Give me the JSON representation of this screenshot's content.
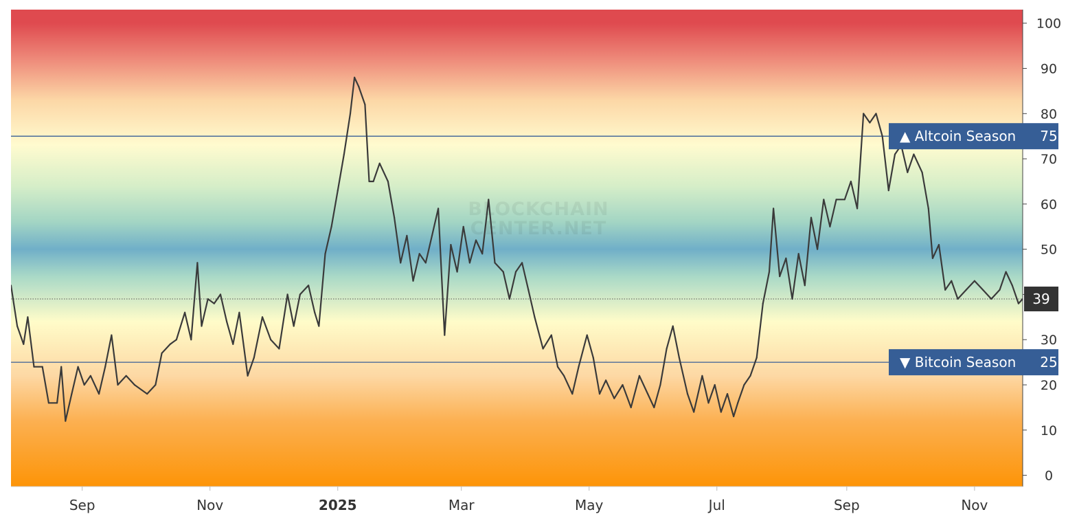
{
  "watermark": {
    "line1": "BLOCKCHAIN",
    "line2": "CENTER.NET"
  },
  "chart_data": {
    "type": "line",
    "title": "",
    "xlabel": "",
    "ylabel": "",
    "ylim": [
      -2.5,
      103
    ],
    "y_ticks": [
      0,
      10,
      20,
      30,
      40,
      50,
      60,
      70,
      80,
      90,
      100
    ],
    "x_range": [
      "2024-07-29",
      "2025-11-24"
    ],
    "x_ticks": [
      {
        "date": "2024-09-01",
        "label": "Sep",
        "bold": false
      },
      {
        "date": "2024-11-01",
        "label": "Nov",
        "bold": false
      },
      {
        "date": "2025-01-01",
        "label": "2025",
        "bold": true
      },
      {
        "date": "2025-03-01",
        "label": "Mar",
        "bold": false
      },
      {
        "date": "2025-05-01",
        "label": "May",
        "bold": false
      },
      {
        "date": "2025-07-01",
        "label": "Jul",
        "bold": false
      },
      {
        "date": "2025-09-01",
        "label": "Sep",
        "bold": false
      },
      {
        "date": "2025-11-01",
        "label": "Nov",
        "bold": false
      }
    ],
    "thresholds": [
      {
        "label": "▲ Altcoin Season",
        "value": 75,
        "value_label": "75",
        "color": "#365e96"
      },
      {
        "label": "▼ Bitcoin Season",
        "value": 25,
        "value_label": "25",
        "color": "#365e96"
      }
    ],
    "current": {
      "value": 39,
      "label": "39",
      "color": "#333333"
    },
    "background_gradient": [
      {
        "value": 100,
        "color": "#df4a4f"
      },
      {
        "value": 92,
        "color": "#ee8a7a"
      },
      {
        "value": 83,
        "color": "#fcd7a6"
      },
      {
        "value": 73,
        "color": "#fffbcf"
      },
      {
        "value": 64,
        "color": "#d6eec8"
      },
      {
        "value": 56,
        "color": "#a3d5c4"
      },
      {
        "value": 50,
        "color": "#70afc8"
      },
      {
        "value": 44,
        "color": "#a9d9c7"
      },
      {
        "value": 34,
        "color": "#fffcc9"
      },
      {
        "value": 22,
        "color": "#fdd8a4"
      },
      {
        "value": 12,
        "color": "#fcb051"
      },
      {
        "value": -2.5,
        "color": "#fd9407"
      }
    ],
    "line_color": "#3a3a3a",
    "series": [
      {
        "values": [
          [
            "2024-07-29",
            42
          ],
          [
            "2024-08-01",
            33
          ],
          [
            "2024-08-04",
            29
          ],
          [
            "2024-08-06",
            35
          ],
          [
            "2024-08-09",
            24
          ],
          [
            "2024-08-13",
            24
          ],
          [
            "2024-08-16",
            16
          ],
          [
            "2024-08-20",
            16
          ],
          [
            "2024-08-22",
            24
          ],
          [
            "2024-08-24",
            12
          ],
          [
            "2024-08-27",
            18
          ],
          [
            "2024-08-30",
            24
          ],
          [
            "2024-09-02",
            20
          ],
          [
            "2024-09-05",
            22
          ],
          [
            "2024-09-09",
            18
          ],
          [
            "2024-09-12",
            24
          ],
          [
            "2024-09-15",
            31
          ],
          [
            "2024-09-18",
            20
          ],
          [
            "2024-09-22",
            22
          ],
          [
            "2024-09-26",
            20
          ],
          [
            "2024-10-02",
            18
          ],
          [
            "2024-10-06",
            20
          ],
          [
            "2024-10-09",
            27
          ],
          [
            "2024-10-13",
            29
          ],
          [
            "2024-10-16",
            30
          ],
          [
            "2024-10-20",
            36
          ],
          [
            "2024-10-23",
            30
          ],
          [
            "2024-10-26",
            47
          ],
          [
            "2024-10-28",
            33
          ],
          [
            "2024-10-31",
            39
          ],
          [
            "2024-11-03",
            38
          ],
          [
            "2024-11-06",
            40
          ],
          [
            "2024-11-09",
            34
          ],
          [
            "2024-11-12",
            29
          ],
          [
            "2024-11-15",
            36
          ],
          [
            "2024-11-19",
            22
          ],
          [
            "2024-11-22",
            26
          ],
          [
            "2024-11-26",
            35
          ],
          [
            "2024-11-30",
            30
          ],
          [
            "2024-12-04",
            28
          ],
          [
            "2024-12-08",
            40
          ],
          [
            "2024-12-11",
            33
          ],
          [
            "2024-12-14",
            40
          ],
          [
            "2024-12-18",
            42
          ],
          [
            "2024-12-21",
            36
          ],
          [
            "2024-12-23",
            33
          ],
          [
            "2024-12-26",
            49
          ],
          [
            "2024-12-29",
            55
          ],
          [
            "2025-01-01",
            63
          ],
          [
            "2025-01-04",
            71
          ],
          [
            "2025-01-07",
            80
          ],
          [
            "2025-01-09",
            88
          ],
          [
            "2025-01-11",
            86
          ],
          [
            "2025-01-14",
            82
          ],
          [
            "2025-01-16",
            65
          ],
          [
            "2025-01-18",
            65
          ],
          [
            "2025-01-21",
            69
          ],
          [
            "2025-01-25",
            65
          ],
          [
            "2025-01-28",
            57
          ],
          [
            "2025-01-31",
            47
          ],
          [
            "2025-02-03",
            53
          ],
          [
            "2025-02-06",
            43
          ],
          [
            "2025-02-09",
            49
          ],
          [
            "2025-02-12",
            47
          ],
          [
            "2025-02-15",
            53
          ],
          [
            "2025-02-18",
            59
          ],
          [
            "2025-02-21",
            31
          ],
          [
            "2025-02-24",
            51
          ],
          [
            "2025-02-27",
            45
          ],
          [
            "2025-03-02",
            55
          ],
          [
            "2025-03-05",
            47
          ],
          [
            "2025-03-08",
            52
          ],
          [
            "2025-03-11",
            49
          ],
          [
            "2025-03-14",
            61
          ],
          [
            "2025-03-17",
            47
          ],
          [
            "2025-03-21",
            45
          ],
          [
            "2025-03-24",
            39
          ],
          [
            "2025-03-27",
            45
          ],
          [
            "2025-03-30",
            47
          ],
          [
            "2025-04-02",
            41
          ],
          [
            "2025-04-05",
            35
          ],
          [
            "2025-04-09",
            28
          ],
          [
            "2025-04-13",
            31
          ],
          [
            "2025-04-16",
            24
          ],
          [
            "2025-04-19",
            22
          ],
          [
            "2025-04-23",
            18
          ],
          [
            "2025-04-26",
            24
          ],
          [
            "2025-04-30",
            31
          ],
          [
            "2025-05-03",
            26
          ],
          [
            "2025-05-06",
            18
          ],
          [
            "2025-05-09",
            21
          ],
          [
            "2025-05-13",
            17
          ],
          [
            "2025-05-17",
            20
          ],
          [
            "2025-05-21",
            15
          ],
          [
            "2025-05-25",
            22
          ],
          [
            "2025-05-29",
            18
          ],
          [
            "2025-06-01",
            15
          ],
          [
            "2025-06-04",
            20
          ],
          [
            "2025-06-07",
            28
          ],
          [
            "2025-06-10",
            33
          ],
          [
            "2025-06-13",
            26
          ],
          [
            "2025-06-17",
            18
          ],
          [
            "2025-06-20",
            14
          ],
          [
            "2025-06-24",
            22
          ],
          [
            "2025-06-27",
            16
          ],
          [
            "2025-06-30",
            20
          ],
          [
            "2025-07-03",
            14
          ],
          [
            "2025-07-06",
            18
          ],
          [
            "2025-07-09",
            13
          ],
          [
            "2025-07-11",
            16
          ],
          [
            "2025-07-14",
            20
          ],
          [
            "2025-07-17",
            22
          ],
          [
            "2025-07-20",
            26
          ],
          [
            "2025-07-23",
            38
          ],
          [
            "2025-07-26",
            45
          ],
          [
            "2025-07-28",
            59
          ],
          [
            "2025-07-31",
            44
          ],
          [
            "2025-08-03",
            48
          ],
          [
            "2025-08-06",
            39
          ],
          [
            "2025-08-09",
            49
          ],
          [
            "2025-08-12",
            42
          ],
          [
            "2025-08-15",
            57
          ],
          [
            "2025-08-18",
            50
          ],
          [
            "2025-08-21",
            61
          ],
          [
            "2025-08-24",
            55
          ],
          [
            "2025-08-27",
            61
          ],
          [
            "2025-08-31",
            61
          ],
          [
            "2025-09-03",
            65
          ],
          [
            "2025-09-06",
            59
          ],
          [
            "2025-09-09",
            80
          ],
          [
            "2025-09-12",
            78
          ],
          [
            "2025-09-15",
            80
          ],
          [
            "2025-09-18",
            75
          ],
          [
            "2025-09-21",
            63
          ],
          [
            "2025-09-24",
            71
          ],
          [
            "2025-09-27",
            73
          ],
          [
            "2025-09-30",
            67
          ],
          [
            "2025-10-03",
            71
          ],
          [
            "2025-10-07",
            67
          ],
          [
            "2025-10-10",
            59
          ],
          [
            "2025-10-12",
            48
          ],
          [
            "2025-10-15",
            51
          ],
          [
            "2025-10-18",
            41
          ],
          [
            "2025-10-21",
            43
          ],
          [
            "2025-10-24",
            39
          ],
          [
            "2025-10-28",
            41
          ],
          [
            "2025-11-01",
            43
          ],
          [
            "2025-11-05",
            41
          ],
          [
            "2025-11-09",
            39
          ],
          [
            "2025-11-13",
            41
          ],
          [
            "2025-11-16",
            45
          ],
          [
            "2025-11-19",
            42
          ],
          [
            "2025-11-22",
            38
          ],
          [
            "2025-11-24",
            39
          ]
        ]
      }
    ]
  }
}
